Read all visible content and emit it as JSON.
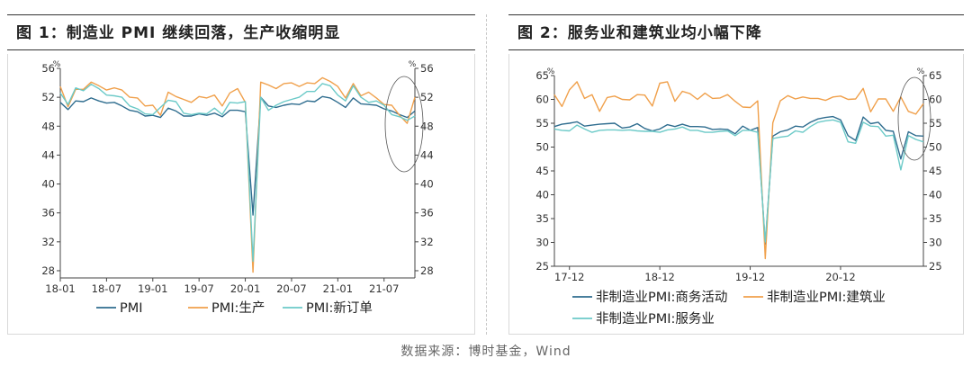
{
  "source": "数据来源：博时基金，Wind",
  "chart_data": [
    {
      "type": "line",
      "title": "图 1：制造业 PMI 继续回落，生产收缩明显",
      "unit_left": "%",
      "unit_right": "%",
      "x": [
        "18-01",
        "18-02",
        "18-03",
        "18-04",
        "18-05",
        "18-06",
        "18-07",
        "18-08",
        "18-09",
        "18-10",
        "18-11",
        "18-12",
        "19-01",
        "19-02",
        "19-03",
        "19-04",
        "19-05",
        "19-06",
        "19-07",
        "19-08",
        "19-09",
        "19-10",
        "19-11",
        "19-12",
        "20-01",
        "20-02",
        "20-03",
        "20-04",
        "20-05",
        "20-06",
        "20-07",
        "20-08",
        "20-09",
        "20-10",
        "20-11",
        "20-12",
        "21-01",
        "21-02",
        "21-03",
        "21-04",
        "21-05",
        "21-06",
        "21-07",
        "21-08",
        "21-09",
        "21-10",
        "21-11"
      ],
      "x_tick_labels": [
        "18-01",
        "18-07",
        "19-01",
        "19-07",
        "20-01",
        "20-07",
        "21-01",
        "21-07"
      ],
      "y_ticks": [
        28,
        32,
        36,
        40,
        44,
        48,
        52,
        56
      ],
      "ylim": [
        27,
        56
      ],
      "series": [
        {
          "name": "PMI",
          "color": "#2f6d8f",
          "values": [
            51.3,
            50.3,
            51.5,
            51.4,
            51.9,
            51.5,
            51.2,
            51.3,
            50.8,
            50.2,
            50.0,
            49.4,
            49.5,
            49.2,
            50.5,
            50.1,
            49.4,
            49.4,
            49.7,
            49.5,
            49.8,
            49.3,
            50.2,
            50.2,
            50.0,
            35.7,
            52.0,
            50.8,
            50.6,
            50.9,
            51.1,
            51.0,
            51.5,
            51.4,
            52.1,
            51.9,
            51.3,
            50.6,
            51.9,
            51.1,
            51.0,
            50.9,
            50.4,
            50.1,
            49.6,
            49.2,
            50.1
          ]
        },
        {
          "name": "PMI:生产",
          "color": "#f0a04b",
          "values": [
            53.5,
            50.7,
            53.1,
            53.1,
            54.1,
            53.6,
            53.0,
            53.3,
            53.0,
            52.0,
            51.9,
            50.8,
            50.9,
            49.5,
            52.7,
            52.1,
            51.7,
            51.3,
            52.1,
            51.9,
            52.3,
            50.8,
            52.6,
            53.2,
            51.3,
            27.8,
            54.1,
            53.7,
            53.2,
            53.9,
            54.0,
            53.5,
            54.0,
            53.9,
            54.7,
            54.2,
            53.5,
            51.9,
            53.9,
            52.2,
            52.7,
            51.9,
            51.0,
            50.9,
            49.5,
            48.4,
            52.0
          ]
        },
        {
          "name": "PMI:新订单",
          "color": "#6ccac8",
          "values": [
            52.6,
            51.0,
            53.3,
            52.9,
            53.8,
            53.2,
            52.3,
            52.2,
            52.0,
            50.8,
            50.4,
            49.7,
            49.6,
            50.6,
            51.6,
            51.4,
            49.8,
            49.6,
            49.8,
            49.7,
            50.5,
            49.6,
            51.3,
            51.2,
            51.4,
            29.3,
            52.0,
            50.2,
            50.9,
            51.4,
            51.7,
            52.0,
            52.8,
            52.8,
            53.9,
            53.6,
            52.3,
            51.5,
            53.6,
            52.0,
            51.3,
            51.5,
            50.9,
            49.6,
            49.3,
            48.8,
            49.4
          ]
        }
      ],
      "legend": [
        "PMI",
        "PMI:生产",
        "PMI:新订单"
      ]
    },
    {
      "type": "line",
      "title": "图 2：服务业和建筑业均小幅下降",
      "unit_left": "%",
      "unit_right": "%",
      "x": [
        "17-10",
        "17-11",
        "17-12",
        "18-01",
        "18-02",
        "18-03",
        "18-04",
        "18-05",
        "18-06",
        "18-07",
        "18-08",
        "18-09",
        "18-10",
        "18-11",
        "18-12",
        "19-01",
        "19-02",
        "19-03",
        "19-04",
        "19-05",
        "19-06",
        "19-07",
        "19-08",
        "19-09",
        "19-10",
        "19-11",
        "19-12",
        "20-01",
        "20-02",
        "20-03",
        "20-04",
        "20-05",
        "20-06",
        "20-07",
        "20-08",
        "20-09",
        "20-10",
        "20-11",
        "20-12",
        "21-01",
        "21-02",
        "21-03",
        "21-04",
        "21-05",
        "21-06",
        "21-07",
        "21-08",
        "21-09",
        "21-10",
        "21-11"
      ],
      "x_tick_labels": [
        "17-12",
        "18-12",
        "19-12",
        "20-12"
      ],
      "y_ticks": [
        25,
        30,
        35,
        40,
        45,
        50,
        55,
        60,
        65
      ],
      "ylim": [
        25,
        65
      ],
      "series": [
        {
          "name": "非制造业PMI:商务活动",
          "color": "#2f6d8f",
          "values": [
            54.3,
            54.8,
            55.0,
            55.3,
            54.4,
            54.6,
            54.8,
            54.9,
            55.0,
            54.0,
            54.2,
            54.9,
            53.9,
            53.4,
            53.8,
            54.7,
            54.3,
            54.8,
            54.3,
            54.3,
            54.2,
            53.7,
            53.8,
            53.7,
            52.8,
            54.4,
            53.5,
            54.1,
            29.6,
            52.3,
            53.2,
            53.6,
            54.4,
            54.2,
            55.2,
            55.9,
            56.2,
            56.4,
            55.7,
            52.4,
            51.4,
            56.3,
            54.9,
            55.2,
            53.5,
            53.3,
            47.5,
            53.2,
            52.4,
            52.3
          ]
        },
        {
          "name": "非制造业PMI:建筑业",
          "color": "#f0a04b",
          "values": [
            61.0,
            58.5,
            62.0,
            63.7,
            60.2,
            61.0,
            57.5,
            60.4,
            60.7,
            60.0,
            59.9,
            61.0,
            60.9,
            58.6,
            63.4,
            63.7,
            59.6,
            61.7,
            61.2,
            60.0,
            61.3,
            60.2,
            60.3,
            61.0,
            59.6,
            58.4,
            58.3,
            59.7,
            26.6,
            55.1,
            59.7,
            60.8,
            60.1,
            60.5,
            60.2,
            60.2,
            59.8,
            60.5,
            60.7,
            60.0,
            60.1,
            62.3,
            57.4,
            60.1,
            60.1,
            57.5,
            60.5,
            57.5,
            56.9,
            59.1
          ]
        },
        {
          "name": "非制造业PMI:服务业",
          "color": "#6ccac8",
          "values": [
            53.8,
            53.5,
            53.4,
            54.6,
            53.8,
            53.1,
            53.5,
            53.6,
            53.6,
            53.5,
            53.6,
            53.4,
            53.3,
            53.3,
            53.1,
            53.6,
            53.8,
            54.2,
            53.5,
            53.5,
            53.1,
            53.1,
            53.3,
            53.4,
            52.4,
            53.5,
            53.5,
            53.1,
            30.1,
            51.8,
            52.1,
            52.3,
            53.4,
            53.1,
            54.3,
            55.2,
            55.5,
            55.7,
            55.2,
            51.1,
            50.8,
            55.2,
            54.4,
            54.3,
            52.3,
            52.5,
            45.2,
            52.4,
            51.6,
            51.1
          ]
        }
      ],
      "legend": [
        "非制造业PMI:商务活动",
        "非制造业PMI:建筑业",
        "非制造业PMI:服务业"
      ]
    }
  ]
}
